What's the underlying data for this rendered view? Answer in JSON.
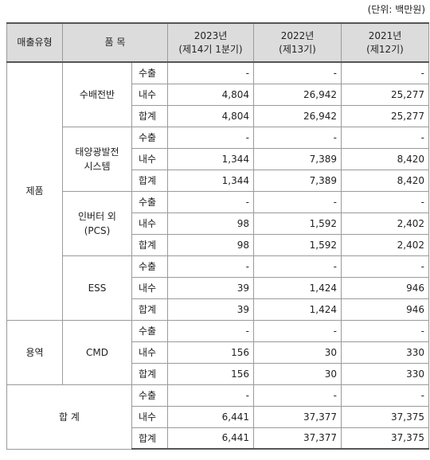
{
  "unit": "(단위: 백만원)",
  "header": {
    "type": "매출유형",
    "item": "품 목",
    "years": [
      {
        "year": "2023년",
        "period": "(제14기 1분기)"
      },
      {
        "year": "2022년",
        "period": "(제13기)"
      },
      {
        "year": "2021년",
        "period": "(제12기)"
      }
    ]
  },
  "groups": [
    {
      "type": "제품",
      "items": [
        {
          "name": [
            "수배전반"
          ],
          "rows": [
            {
              "label": "수출",
              "values": [
                "-",
                "-",
                "-"
              ]
            },
            {
              "label": "내수",
              "values": [
                "4,804",
                "26,942",
                "25,277"
              ]
            },
            {
              "label": "합계",
              "values": [
                "4,804",
                "26,942",
                "25,277"
              ]
            }
          ]
        },
        {
          "name": [
            "태양광발전",
            "시스템"
          ],
          "rows": [
            {
              "label": "수출",
              "values": [
                "-",
                "-",
                "-"
              ]
            },
            {
              "label": "내수",
              "values": [
                "1,344",
                "7,389",
                "8,420"
              ]
            },
            {
              "label": "합계",
              "values": [
                "1,344",
                "7,389",
                "8,420"
              ]
            }
          ]
        },
        {
          "name": [
            "인버터 외",
            "(PCS)"
          ],
          "rows": [
            {
              "label": "수출",
              "values": [
                "-",
                "-",
                "-"
              ]
            },
            {
              "label": "내수",
              "values": [
                "98",
                "1,592",
                "2,402"
              ]
            },
            {
              "label": "합계",
              "values": [
                "98",
                "1,592",
                "2,402"
              ]
            }
          ]
        },
        {
          "name": [
            "ESS"
          ],
          "rows": [
            {
              "label": "수출",
              "values": [
                "-",
                "-",
                "-"
              ]
            },
            {
              "label": "내수",
              "values": [
                "39",
                "1,424",
                "946"
              ]
            },
            {
              "label": "합계",
              "values": [
                "39",
                "1,424",
                "946"
              ]
            }
          ]
        }
      ]
    },
    {
      "type": "용역",
      "items": [
        {
          "name": [
            "CMD"
          ],
          "rows": [
            {
              "label": "수출",
              "values": [
                "-",
                "-",
                "-"
              ]
            },
            {
              "label": "내수",
              "values": [
                "156",
                "30",
                "330"
              ]
            },
            {
              "label": "합계",
              "values": [
                "156",
                "30",
                "330"
              ]
            }
          ]
        }
      ]
    },
    {
      "type": "합 계",
      "items": [
        {
          "rows": [
            {
              "label": "수출",
              "values": [
                "-",
                "-",
                "-"
              ]
            },
            {
              "label": "내수",
              "values": [
                "6,441",
                "37,377",
                "37,375"
              ]
            },
            {
              "label": "합계",
              "values": [
                "6,441",
                "37,377",
                "37,375"
              ]
            }
          ]
        }
      ]
    }
  ]
}
